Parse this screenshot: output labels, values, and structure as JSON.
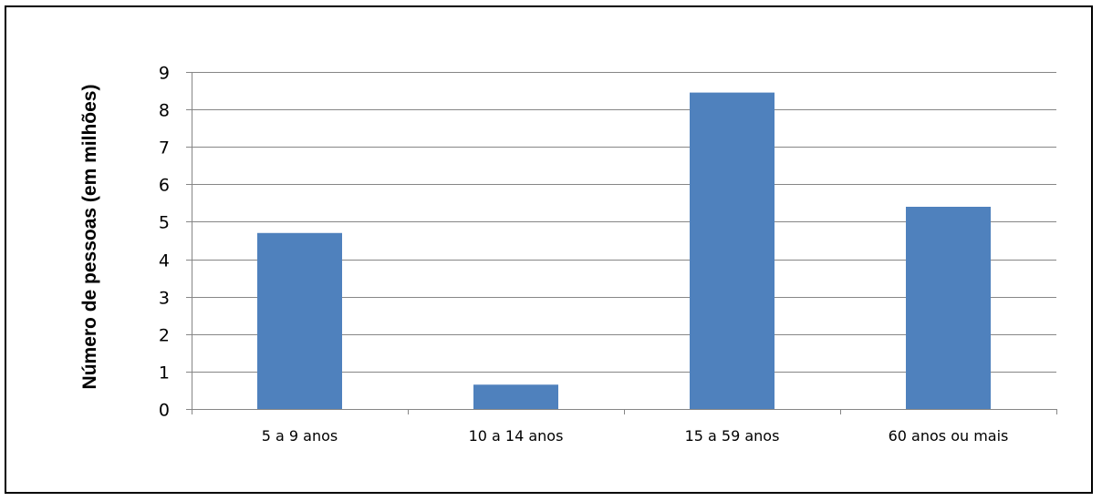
{
  "chart_data": {
    "type": "bar",
    "title": "",
    "xlabel": "",
    "ylabel": "Número de pessoas (em milhões)",
    "categories": [
      "5 a 9 anos",
      "10 a 14 anos",
      "15 a 59 anos",
      "60 anos ou mais"
    ],
    "values": [
      4.7,
      0.65,
      8.45,
      5.4
    ],
    "ylim": [
      0,
      9
    ],
    "yticks": [
      0,
      1,
      2,
      3,
      4,
      5,
      6,
      7,
      8,
      9
    ],
    "grid": true,
    "legend": "none",
    "colors": {
      "bar": "#4f81bd",
      "grid": "#868686",
      "axis": "#868686",
      "frame": "#000000"
    }
  }
}
